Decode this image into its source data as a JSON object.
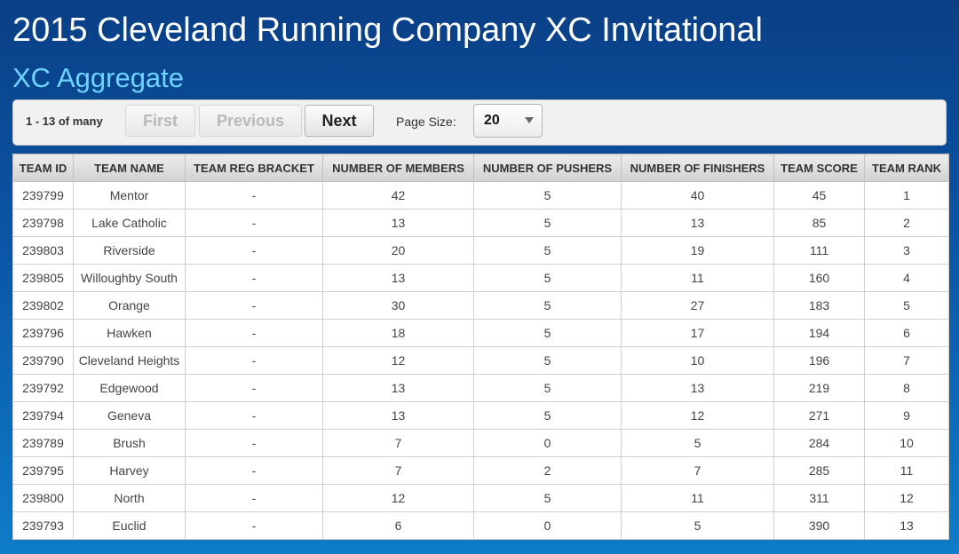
{
  "page": {
    "title": "2015 Cleveland Running Company XC Invitational",
    "subtitle": "XC Aggregate"
  },
  "pager": {
    "range_text": "1 - 13 of many",
    "first_label": "First",
    "previous_label": "Previous",
    "next_label": "Next",
    "page_size_label": "Page Size:",
    "page_size_value": "20"
  },
  "table": {
    "columns": [
      "TEAM ID",
      "TEAM NAME",
      "TEAM REG BRACKET",
      "NUMBER OF MEMBERS",
      "NUMBER OF PUSHERS",
      "NUMBER OF FINISHERS",
      "TEAM SCORE",
      "TEAM RANK"
    ],
    "rows": [
      [
        "239799",
        "Mentor",
        "-",
        "42",
        "5",
        "40",
        "45",
        "1"
      ],
      [
        "239798",
        "Lake Catholic",
        "-",
        "13",
        "5",
        "13",
        "85",
        "2"
      ],
      [
        "239803",
        "Riverside",
        "-",
        "20",
        "5",
        "19",
        "111",
        "3"
      ],
      [
        "239805",
        "Willoughby South",
        "-",
        "13",
        "5",
        "11",
        "160",
        "4"
      ],
      [
        "239802",
        "Orange",
        "-",
        "30",
        "5",
        "27",
        "183",
        "5"
      ],
      [
        "239796",
        "Hawken",
        "-",
        "18",
        "5",
        "17",
        "194",
        "6"
      ],
      [
        "239790",
        "Cleveland Heights",
        "-",
        "12",
        "5",
        "10",
        "196",
        "7"
      ],
      [
        "239792",
        "Edgewood",
        "-",
        "13",
        "5",
        "13",
        "219",
        "8"
      ],
      [
        "239794",
        "Geneva",
        "-",
        "13",
        "5",
        "12",
        "271",
        "9"
      ],
      [
        "239789",
        "Brush",
        "-",
        "7",
        "0",
        "5",
        "284",
        "10"
      ],
      [
        "239795",
        "Harvey",
        "-",
        "7",
        "2",
        "7",
        "285",
        "11"
      ],
      [
        "239800",
        "North",
        "-",
        "12",
        "5",
        "11",
        "311",
        "12"
      ],
      [
        "239793",
        "Euclid",
        "-",
        "6",
        "0",
        "5",
        "390",
        "13"
      ]
    ]
  }
}
